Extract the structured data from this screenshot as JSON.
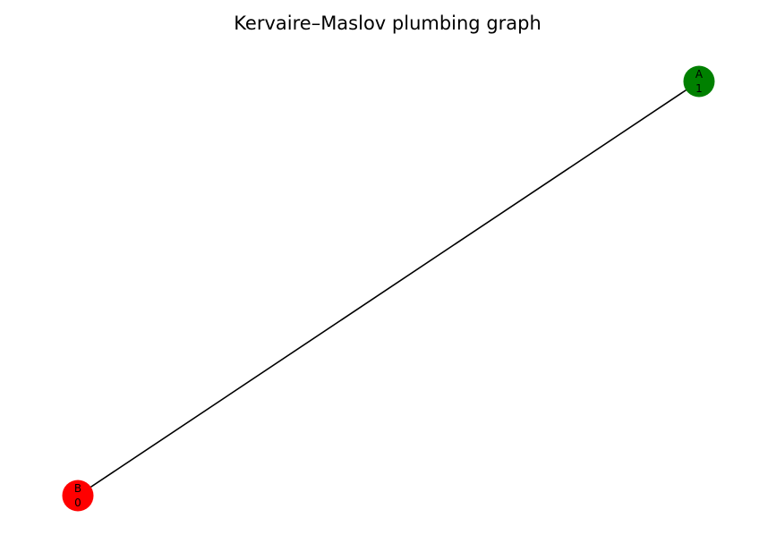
{
  "title": "Kervaire–Maslov plumbing graph",
  "colors": {
    "edge": "#000000",
    "background": "#ffffff"
  },
  "nodes": [
    {
      "id": "A",
      "name": "A",
      "value": "1",
      "color": "#008000"
    },
    {
      "id": "B",
      "name": "B",
      "value": "0",
      "color": "#ff0000"
    }
  ],
  "edges": [
    {
      "from": "A",
      "to": "B"
    }
  ]
}
